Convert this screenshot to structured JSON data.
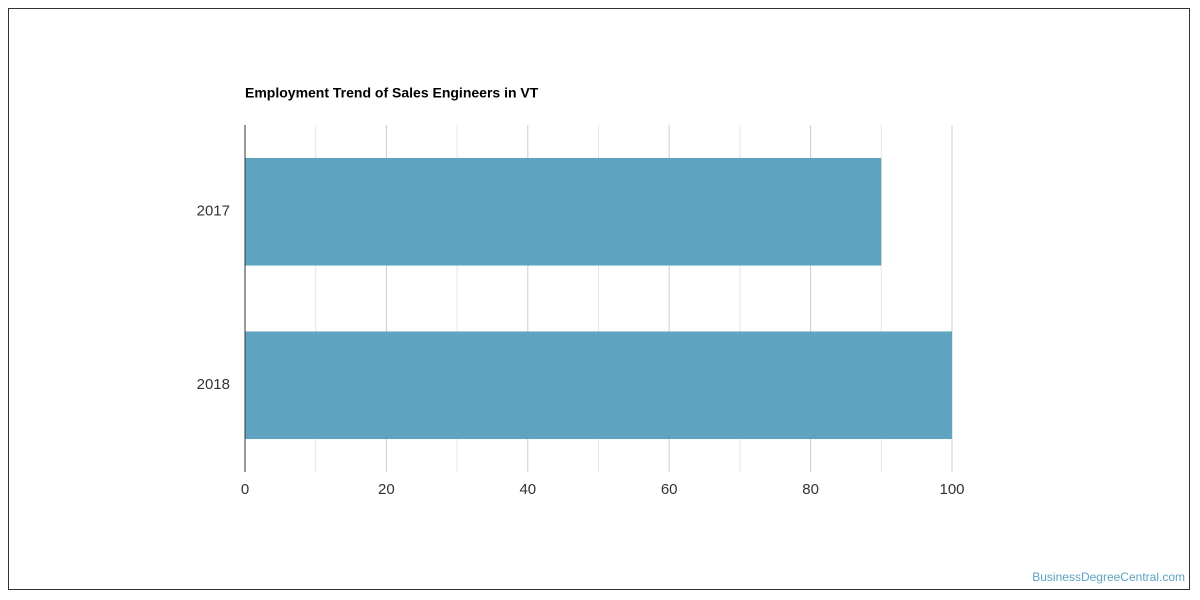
{
  "chart_data": {
    "type": "bar",
    "orientation": "horizontal",
    "title": "Employment Trend of Sales Engineers in VT",
    "categories": [
      "2017",
      "2018"
    ],
    "values": [
      90,
      100
    ],
    "color": "#5ea3bf",
    "xlim": [
      0,
      100
    ],
    "xticks": [
      0,
      20,
      40,
      60,
      80,
      100
    ],
    "x_minor_ticks": [
      10,
      30,
      50,
      70,
      90
    ],
    "grid": true,
    "source": "BusinessDegreeCentral.com"
  }
}
